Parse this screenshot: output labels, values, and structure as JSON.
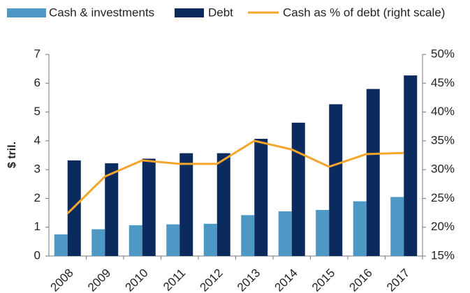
{
  "chart_data": {
    "type": "bar",
    "categories": [
      "2008",
      "2009",
      "2010",
      "2011",
      "2012",
      "2013",
      "2014",
      "2015",
      "2016",
      "2017"
    ],
    "series": [
      {
        "name": "Cash & investments",
        "type": "bar",
        "color": "#4e98c6",
        "values": [
          0.75,
          0.93,
          1.07,
          1.1,
          1.12,
          1.42,
          1.55,
          1.6,
          1.9,
          2.05
        ]
      },
      {
        "name": "Debt",
        "type": "bar",
        "color": "#0b2b5e",
        "values": [
          3.32,
          3.22,
          3.38,
          3.57,
          3.57,
          4.07,
          4.63,
          5.27,
          5.8,
          6.27
        ]
      },
      {
        "name": "Cash as % of debt (right scale)",
        "type": "line",
        "axis": "y2",
        "color": "#f5a52a",
        "values": [
          22.4,
          28.8,
          31.6,
          31.0,
          31.0,
          35.0,
          33.5,
          30.5,
          32.7,
          32.9
        ]
      }
    ],
    "ylabel": "$ tril.",
    "ylim": [
      0,
      7
    ],
    "yticks": [
      0,
      1,
      2,
      3,
      4,
      5,
      6,
      7
    ],
    "y2lim": [
      15,
      50
    ],
    "y2ticks": [
      {
        "value": 15,
        "label": "15%"
      },
      {
        "value": 20,
        "label": "20%"
      },
      {
        "value": 25,
        "label": "25%"
      },
      {
        "value": 30,
        "label": "30%"
      },
      {
        "value": 35,
        "label": "35%"
      },
      {
        "value": 40,
        "label": "40%"
      },
      {
        "value": 45,
        "label": "45%"
      },
      {
        "value": 50,
        "label": "50%"
      }
    ],
    "grid": false,
    "legend": "top"
  }
}
